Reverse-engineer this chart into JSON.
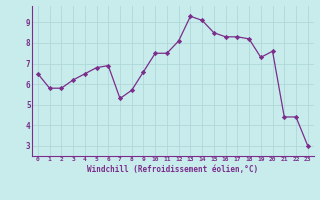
{
  "x": [
    0,
    1,
    2,
    3,
    4,
    5,
    6,
    7,
    8,
    9,
    10,
    11,
    12,
    13,
    14,
    15,
    16,
    17,
    18,
    19,
    20,
    21,
    22,
    23
  ],
  "y": [
    6.5,
    5.8,
    5.8,
    6.2,
    6.5,
    6.8,
    6.9,
    5.3,
    5.7,
    6.6,
    7.5,
    7.5,
    8.1,
    9.3,
    9.1,
    8.5,
    8.3,
    8.3,
    8.2,
    7.3,
    7.6,
    4.4,
    4.4,
    3.0
  ],
  "line_color": "#7b2d8b",
  "marker": "D",
  "marker_size": 2.2,
  "bg_color": "#c8ecec",
  "grid_color": "#b0d8d8",
  "xlabel": "Windchill (Refroidissement éolien,°C)",
  "xlabel_color": "#7b2d8b",
  "tick_color": "#7b2d8b",
  "ylim": [
    2.5,
    9.8
  ],
  "xlim": [
    -0.5,
    23.5
  ],
  "yticks": [
    3,
    4,
    5,
    6,
    7,
    8,
    9
  ],
  "xticks": [
    0,
    1,
    2,
    3,
    4,
    5,
    6,
    7,
    8,
    9,
    10,
    11,
    12,
    13,
    14,
    15,
    16,
    17,
    18,
    19,
    20,
    21,
    22,
    23
  ],
  "spine_color": "#7b2d8b"
}
